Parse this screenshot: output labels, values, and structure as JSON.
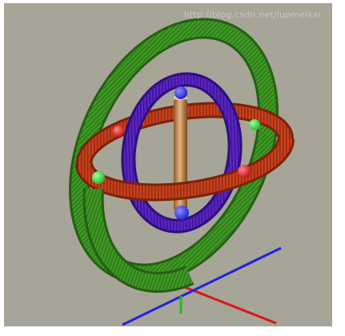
{
  "watermark": {
    "text": "http://blog.csdn.net/luomeikai"
  },
  "colors": {
    "background": "#a7a498",
    "outer_ring": "#3f9a25",
    "middle_ring": "#c8401c",
    "inner_ring": "#5a26c2",
    "axle": "#d49a5e",
    "pivot_outer_to_middle": "#33d44a",
    "pivot_middle_to_inner": "#e02a2a",
    "pivot_axle": "#2d2df0",
    "axis_x": "#dd1515",
    "axis_y": "#22bb22",
    "axis_z": "#2222dd"
  },
  "icons": {
    "scene": "gyroscope-3d-render"
  }
}
